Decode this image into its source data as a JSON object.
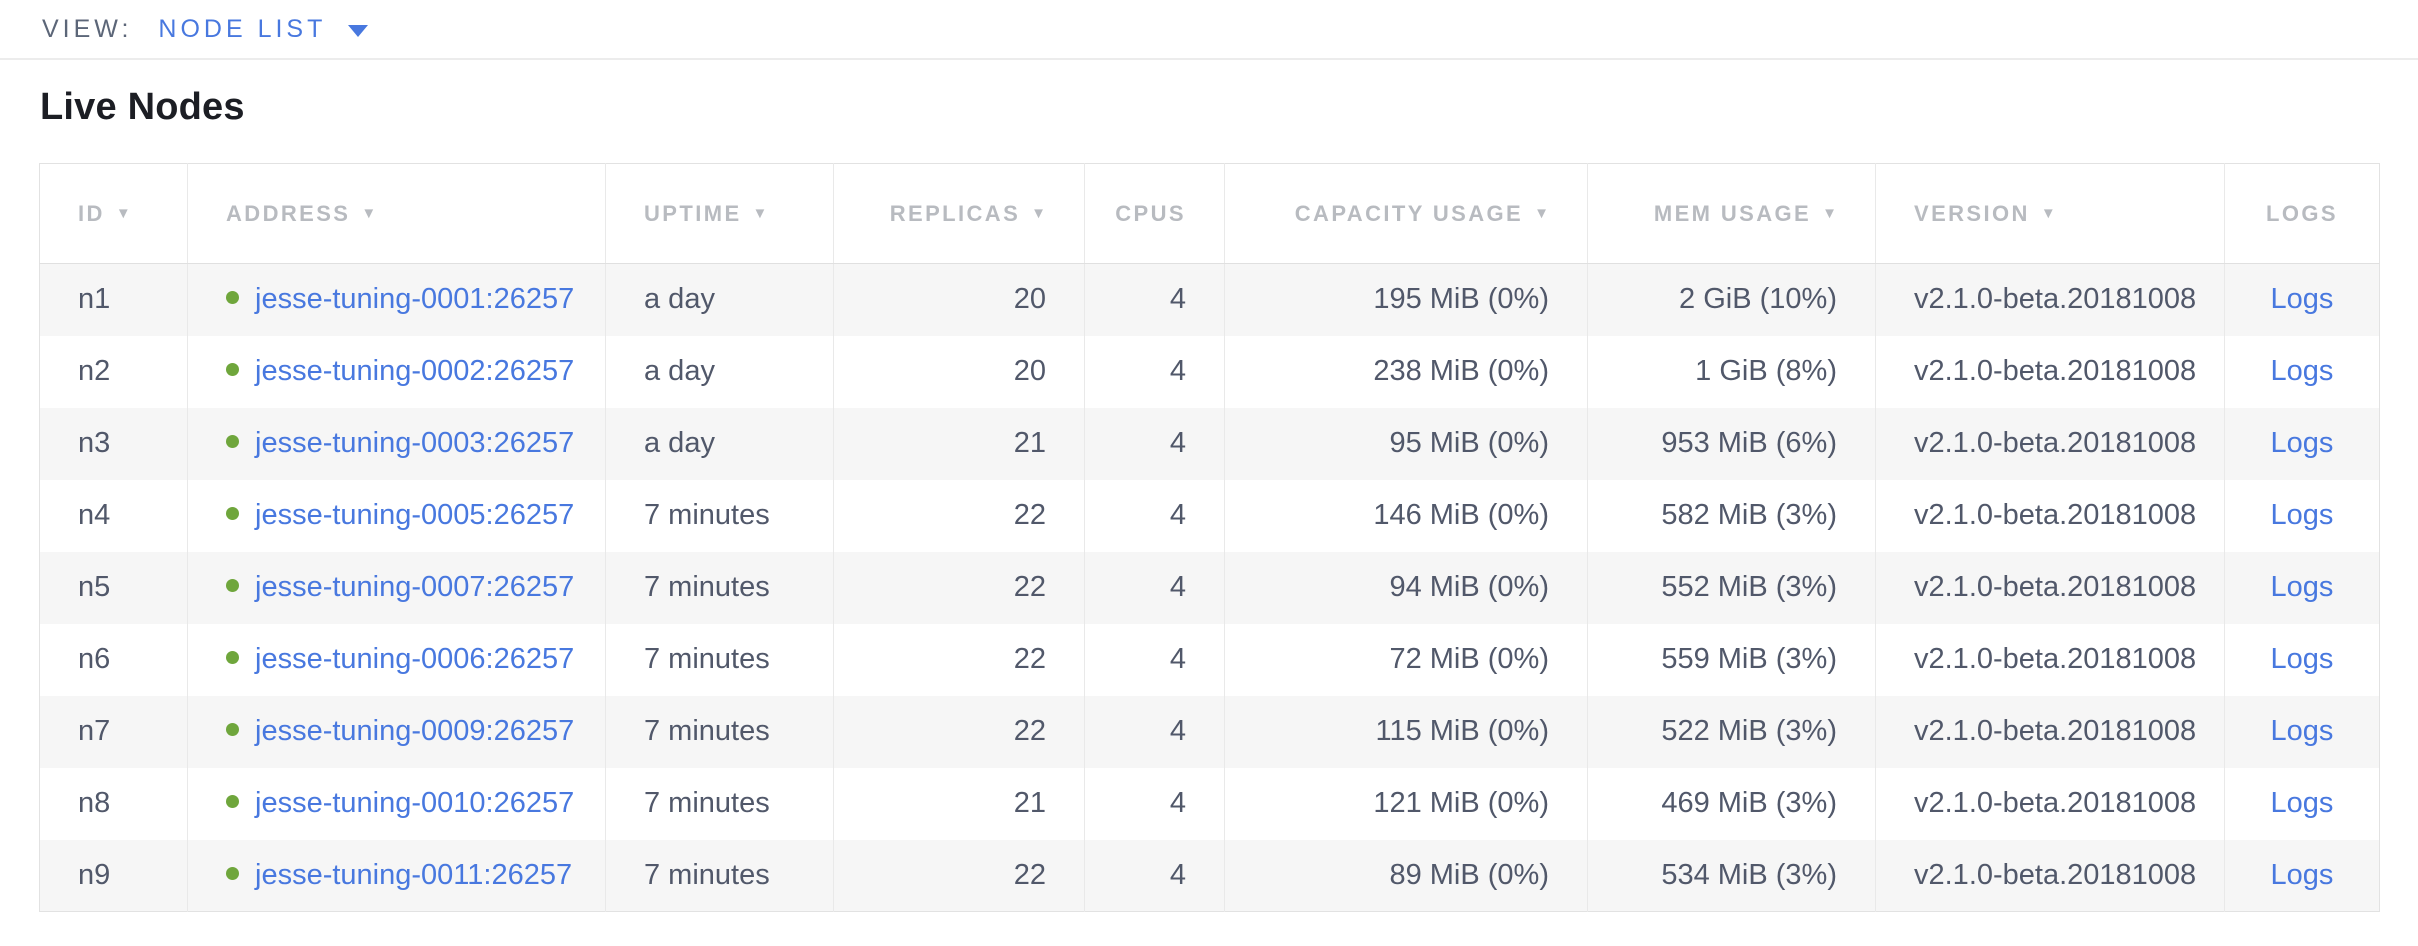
{
  "view_bar": {
    "label": "VIEW:",
    "selected": "NODE LIST",
    "dropdown_icon": "caret-down"
  },
  "page": {
    "title": "Live Nodes"
  },
  "colors": {
    "accent_blue": "#4878df",
    "status_green": "#6fa63c",
    "header_gray": "#b8bbc0",
    "cell_text": "#51586a",
    "alt_row_bg": "#f6f6f6"
  },
  "table": {
    "columns": [
      {
        "key": "id",
        "label": "ID",
        "sortable": true,
        "align": "left"
      },
      {
        "key": "address",
        "label": "ADDRESS",
        "sortable": true,
        "align": "left"
      },
      {
        "key": "uptime",
        "label": "UPTIME",
        "sortable": true,
        "align": "left"
      },
      {
        "key": "replicas",
        "label": "REPLICAS",
        "sortable": true,
        "align": "right"
      },
      {
        "key": "cpus",
        "label": "CPUS",
        "sortable": false,
        "align": "right"
      },
      {
        "key": "capacity_usage",
        "label": "CAPACITY USAGE",
        "sortable": true,
        "align": "right"
      },
      {
        "key": "mem_usage",
        "label": "MEM USAGE",
        "sortable": true,
        "align": "right"
      },
      {
        "key": "version",
        "label": "VERSION",
        "sortable": true,
        "align": "left"
      },
      {
        "key": "logs",
        "label": "LOGS",
        "sortable": false,
        "align": "center"
      }
    ],
    "rows": [
      {
        "id": "n1",
        "status": "live",
        "address": "jesse-tuning-0001:26257",
        "uptime": "a day",
        "replicas": "20",
        "cpus": "4",
        "capacity_usage": "195 MiB (0%)",
        "mem_usage": "2 GiB (10%)",
        "version": "v2.1.0-beta.20181008",
        "logs": "Logs"
      },
      {
        "id": "n2",
        "status": "live",
        "address": "jesse-tuning-0002:26257",
        "uptime": "a day",
        "replicas": "20",
        "cpus": "4",
        "capacity_usage": "238 MiB (0%)",
        "mem_usage": "1 GiB (8%)",
        "version": "v2.1.0-beta.20181008",
        "logs": "Logs"
      },
      {
        "id": "n3",
        "status": "live",
        "address": "jesse-tuning-0003:26257",
        "uptime": "a day",
        "replicas": "21",
        "cpus": "4",
        "capacity_usage": "95 MiB (0%)",
        "mem_usage": "953 MiB (6%)",
        "version": "v2.1.0-beta.20181008",
        "logs": "Logs"
      },
      {
        "id": "n4",
        "status": "live",
        "address": "jesse-tuning-0005:26257",
        "uptime": "7 minutes",
        "replicas": "22",
        "cpus": "4",
        "capacity_usage": "146 MiB (0%)",
        "mem_usage": "582 MiB (3%)",
        "version": "v2.1.0-beta.20181008",
        "logs": "Logs"
      },
      {
        "id": "n5",
        "status": "live",
        "address": "jesse-tuning-0007:26257",
        "uptime": "7 minutes",
        "replicas": "22",
        "cpus": "4",
        "capacity_usage": "94 MiB (0%)",
        "mem_usage": "552 MiB (3%)",
        "version": "v2.1.0-beta.20181008",
        "logs": "Logs"
      },
      {
        "id": "n6",
        "status": "live",
        "address": "jesse-tuning-0006:26257",
        "uptime": "7 minutes",
        "replicas": "22",
        "cpus": "4",
        "capacity_usage": "72 MiB (0%)",
        "mem_usage": "559 MiB (3%)",
        "version": "v2.1.0-beta.20181008",
        "logs": "Logs"
      },
      {
        "id": "n7",
        "status": "live",
        "address": "jesse-tuning-0009:26257",
        "uptime": "7 minutes",
        "replicas": "22",
        "cpus": "4",
        "capacity_usage": "115 MiB (0%)",
        "mem_usage": "522 MiB (3%)",
        "version": "v2.1.0-beta.20181008",
        "logs": "Logs"
      },
      {
        "id": "n8",
        "status": "live",
        "address": "jesse-tuning-0010:26257",
        "uptime": "7 minutes",
        "replicas": "21",
        "cpus": "4",
        "capacity_usage": "121 MiB (0%)",
        "mem_usage": "469 MiB (3%)",
        "version": "v2.1.0-beta.20181008",
        "logs": "Logs"
      },
      {
        "id": "n9",
        "status": "live",
        "address": "jesse-tuning-0011:26257",
        "uptime": "7 minutes",
        "replicas": "22",
        "cpus": "4",
        "capacity_usage": "89 MiB (0%)",
        "mem_usage": "534 MiB (3%)",
        "version": "v2.1.0-beta.20181008",
        "logs": "Logs"
      }
    ]
  }
}
